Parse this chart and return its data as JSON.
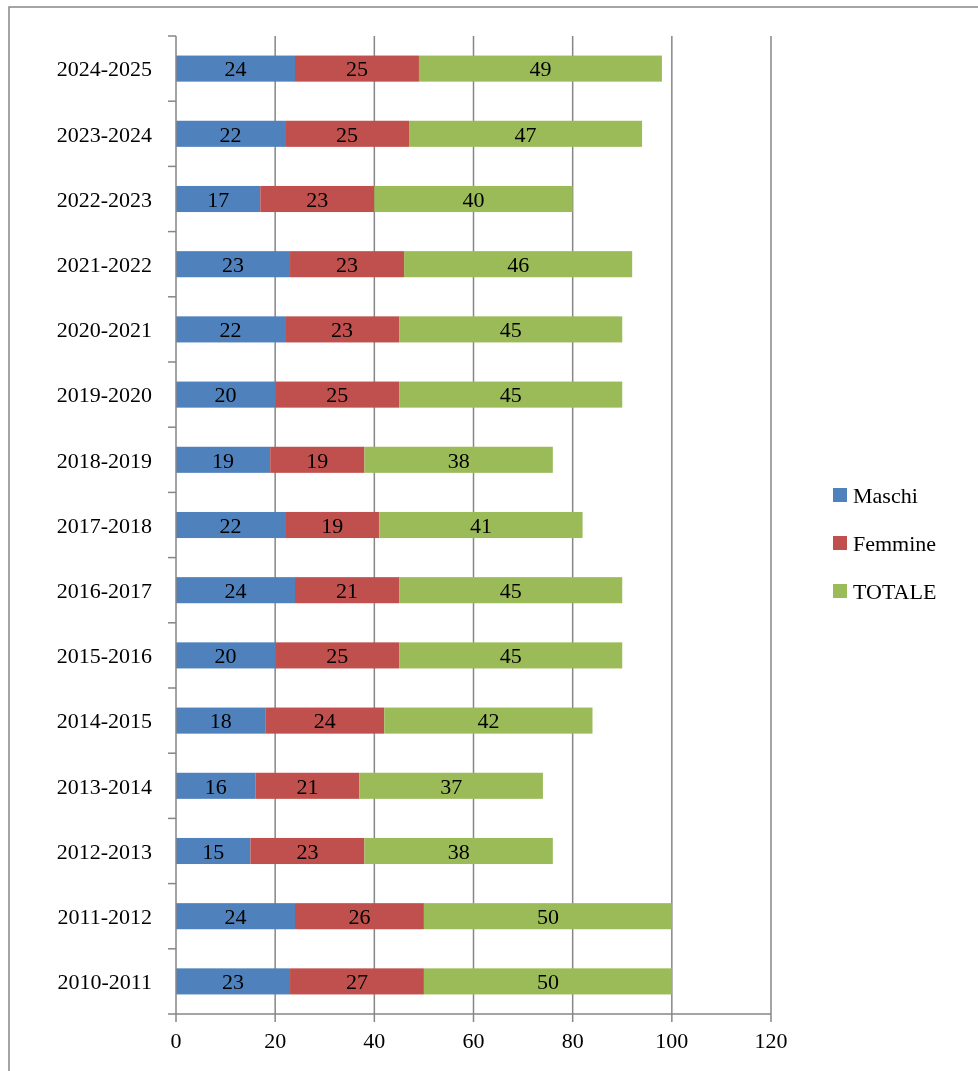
{
  "chart_data": {
    "type": "bar",
    "orientation": "horizontal",
    "stacked": true,
    "categories": [
      "2024-2025",
      "2023-2024",
      "2022-2023",
      "2021-2022",
      "2020-2021",
      "2019-2020",
      "2018-2019",
      "2017-2018",
      "2016-2017",
      "2015-2016",
      "2014-2015",
      "2013-2014",
      "2012-2013",
      "2011-2012",
      "2010-2011"
    ],
    "series": [
      {
        "name": "Maschi",
        "color": "#4f81bd",
        "values": [
          24,
          22,
          17,
          23,
          22,
          20,
          19,
          22,
          24,
          20,
          18,
          16,
          15,
          24,
          23
        ]
      },
      {
        "name": "Femmine",
        "color": "#c0504d",
        "values": [
          25,
          25,
          23,
          23,
          23,
          25,
          19,
          19,
          21,
          25,
          24,
          21,
          23,
          26,
          27
        ]
      },
      {
        "name": "TOTALE",
        "color": "#9bbb59",
        "values": [
          49,
          47,
          40,
          46,
          45,
          45,
          38,
          41,
          45,
          45,
          42,
          37,
          38,
          50,
          50
        ]
      }
    ],
    "xlim": [
      0,
      120
    ],
    "xticks": [
      0,
      20,
      40,
      60,
      80,
      100,
      120
    ],
    "grid": "x",
    "legend": "right",
    "data_labels": true
  }
}
